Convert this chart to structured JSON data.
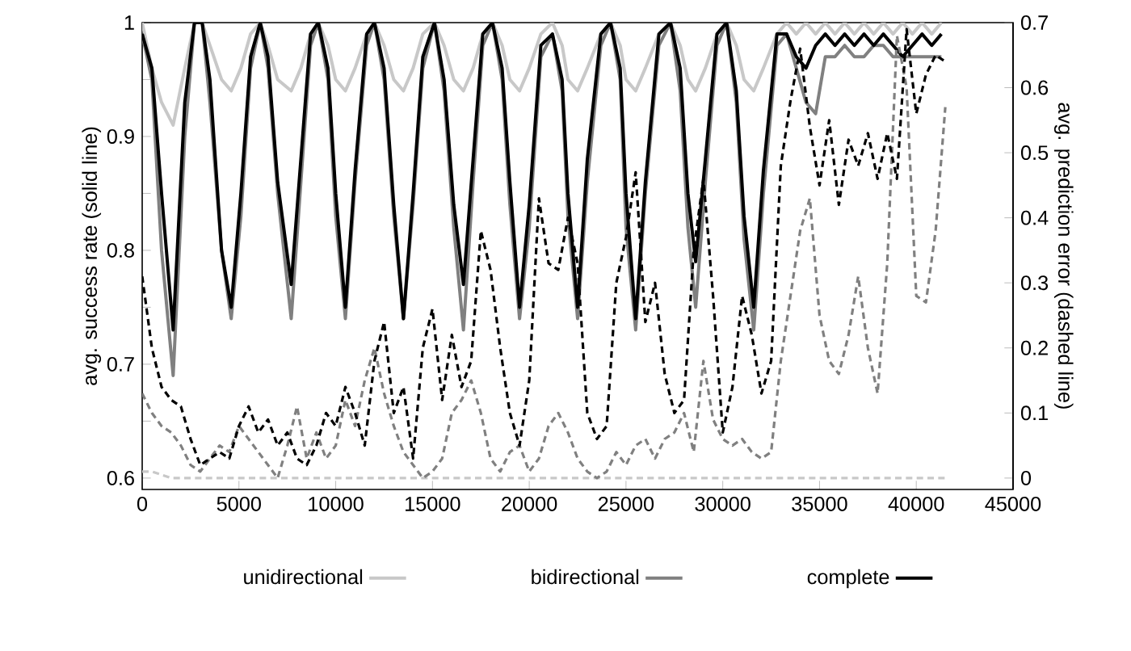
{
  "chart_data": {
    "type": "line",
    "ylabel": "avg. success rate (solid line)",
    "y2label": "avg. prediction error (dashed line)",
    "xlim": [
      0,
      45000
    ],
    "xticks": [
      0,
      5000,
      10000,
      15000,
      20000,
      25000,
      30000,
      35000,
      40000,
      45000
    ],
    "ylim": [
      0.59,
      1
    ],
    "yticks": [
      0.6,
      {
        "value": 0.65,
        "label": null
      },
      0.7,
      {
        "value": 0.75,
        "label": null
      },
      0.8,
      {
        "value": 0.85,
        "label": null
      },
      0.9,
      {
        "value": 0.95,
        "label": null
      },
      1
    ],
    "y2lim": [
      -0.0175,
      0.7
    ],
    "y2ticks": [
      0,
      0.1,
      0.2,
      0.3,
      0.4,
      0.5,
      0.6,
      0.7
    ],
    "legend": "bottom",
    "marker": "none",
    "series": [
      {
        "name": "unidirectional",
        "color": "#c8c8c8",
        "line_style": "solid",
        "x": [
          0,
          500,
          1000,
          1600,
          2200,
          2700,
          3100,
          3500,
          4100,
          4600,
          5100,
          5600,
          6100,
          6500,
          7000,
          7700,
          8200,
          8700,
          9100,
          9600,
          10000,
          10500,
          11000,
          11600,
          12000,
          12500,
          13000,
          13500,
          14000,
          14500,
          15100,
          15600,
          16100,
          16600,
          17100,
          17600,
          18100,
          18600,
          19000,
          19500,
          20000,
          20600,
          21200,
          21700,
          22000,
          22500,
          23000,
          23700,
          24200,
          24700,
          25000,
          25500,
          26000,
          26700,
          27300,
          27800,
          28200,
          28600,
          29100,
          29700,
          30200,
          30700,
          31100,
          31600,
          32100,
          32800,
          33300,
          33800,
          34300,
          34800,
          35300,
          35800,
          36300,
          36800,
          37300,
          37800,
          38300,
          38800,
          39300,
          39800,
          40300,
          40800,
          41300
        ],
        "values": [
          1.0,
          0.96,
          0.93,
          0.91,
          0.96,
          1.0,
          1.0,
          0.98,
          0.95,
          0.94,
          0.96,
          0.99,
          1.0,
          0.98,
          0.95,
          0.94,
          0.96,
          0.99,
          1.0,
          0.98,
          0.95,
          0.94,
          0.96,
          0.99,
          1.0,
          0.98,
          0.95,
          0.94,
          0.96,
          0.99,
          1.0,
          0.98,
          0.95,
          0.94,
          0.96,
          0.99,
          1.0,
          0.98,
          0.95,
          0.94,
          0.96,
          0.99,
          1.0,
          0.98,
          0.95,
          0.94,
          0.96,
          0.99,
          1.0,
          0.98,
          0.95,
          0.94,
          0.96,
          0.99,
          1.0,
          0.98,
          0.95,
          0.94,
          0.96,
          0.99,
          1.0,
          0.98,
          0.95,
          0.94,
          0.96,
          0.99,
          1.0,
          0.99,
          1.0,
          0.99,
          1.0,
          0.99,
          1.0,
          0.99,
          1.0,
          0.99,
          1.0,
          0.99,
          1.0,
          0.99,
          1.0,
          0.99,
          1.0
        ]
      },
      {
        "name": "bidirectional",
        "color": "#808080",
        "line_style": "solid",
        "x": [
          0,
          500,
          1000,
          1600,
          2200,
          2700,
          3100,
          3500,
          4100,
          4600,
          5100,
          5600,
          6100,
          6500,
          7000,
          7700,
          8200,
          8700,
          9100,
          9600,
          10000,
          10500,
          11000,
          11600,
          12000,
          12500,
          13000,
          13500,
          14000,
          14500,
          15100,
          15600,
          16100,
          16600,
          17100,
          17600,
          18100,
          18600,
          19000,
          19500,
          20000,
          20600,
          21200,
          21700,
          22000,
          22500,
          23000,
          23700,
          24200,
          24700,
          25000,
          25500,
          26000,
          26700,
          27300,
          27800,
          28200,
          28600,
          29100,
          29700,
          30200,
          30700,
          31100,
          31600,
          32100,
          32800,
          33300,
          33800,
          34300,
          34800,
          35300,
          35800,
          36300,
          36800,
          37300,
          37800,
          38300,
          38800,
          39300,
          39800,
          40300,
          40800,
          41300
        ],
        "values": [
          0.99,
          0.95,
          0.8,
          0.69,
          0.9,
          1.0,
          1.0,
          0.93,
          0.8,
          0.74,
          0.83,
          0.96,
          1.0,
          0.96,
          0.85,
          0.74,
          0.86,
          0.98,
          1.0,
          0.95,
          0.83,
          0.74,
          0.86,
          0.98,
          1.0,
          0.95,
          0.83,
          0.74,
          0.84,
          0.96,
          1.0,
          0.94,
          0.82,
          0.73,
          0.86,
          0.98,
          1.0,
          0.95,
          0.84,
          0.74,
          0.82,
          0.97,
          0.99,
          0.94,
          0.83,
          0.74,
          0.86,
          0.98,
          1.0,
          0.95,
          0.82,
          0.73,
          0.85,
          0.98,
          1.0,
          0.94,
          0.82,
          0.75,
          0.86,
          0.98,
          1.0,
          0.93,
          0.81,
          0.73,
          0.85,
          0.98,
          0.99,
          0.96,
          0.93,
          0.92,
          0.97,
          0.97,
          0.98,
          0.97,
          0.97,
          0.98,
          0.98,
          0.97,
          0.97,
          0.97,
          0.97,
          0.97,
          0.97
        ]
      },
      {
        "name": "complete",
        "color": "#000000",
        "line_style": "solid",
        "x": [
          0,
          500,
          1000,
          1600,
          2200,
          2700,
          3100,
          3500,
          4100,
          4600,
          5100,
          5600,
          6100,
          6500,
          7000,
          7700,
          8200,
          8700,
          9100,
          9600,
          10000,
          10500,
          11000,
          11600,
          12000,
          12500,
          13000,
          13500,
          14000,
          14500,
          15100,
          15600,
          16100,
          16600,
          17100,
          17600,
          18100,
          18600,
          19000,
          19500,
          20000,
          20600,
          21200,
          21700,
          22000,
          22500,
          23000,
          23700,
          24200,
          24700,
          25000,
          25500,
          26000,
          26700,
          27300,
          27800,
          28200,
          28600,
          29100,
          29700,
          30200,
          30700,
          31100,
          31600,
          32100,
          32800,
          33300,
          33800,
          34300,
          34800,
          35300,
          35800,
          36300,
          36800,
          37300,
          37800,
          38300,
          38800,
          39300,
          39800,
          40300,
          40800,
          41300
        ],
        "values": [
          0.99,
          0.96,
          0.85,
          0.73,
          0.93,
          1.0,
          1.0,
          0.95,
          0.8,
          0.75,
          0.85,
          0.97,
          1.0,
          0.97,
          0.86,
          0.77,
          0.88,
          0.99,
          1.0,
          0.96,
          0.85,
          0.75,
          0.87,
          0.99,
          1.0,
          0.96,
          0.84,
          0.74,
          0.85,
          0.97,
          1.0,
          0.95,
          0.84,
          0.77,
          0.88,
          0.99,
          1.0,
          0.96,
          0.86,
          0.75,
          0.84,
          0.98,
          0.99,
          0.95,
          0.85,
          0.75,
          0.88,
          0.99,
          1.0,
          0.96,
          0.85,
          0.74,
          0.86,
          0.99,
          1.0,
          0.96,
          0.85,
          0.79,
          0.88,
          0.99,
          1.0,
          0.94,
          0.83,
          0.75,
          0.87,
          0.99,
          0.99,
          0.97,
          0.96,
          0.98,
          0.99,
          0.98,
          0.99,
          0.98,
          0.99,
          0.98,
          0.99,
          0.98,
          0.97,
          0.98,
          0.99,
          0.98,
          0.99
        ]
      },
      {
        "axis": "y2",
        "color": "#c8c8c8",
        "line_style": "dashed",
        "x": [
          0,
          500,
          1500,
          41500
        ],
        "values": [
          0.01,
          0.01,
          0,
          0
        ]
      },
      {
        "axis": "y2",
        "color": "#808080",
        "line_style": "dashed",
        "x": [
          0,
          500,
          1000,
          1500,
          2000,
          2500,
          3000,
          3500,
          4000,
          4500,
          5000,
          5500,
          6000,
          6500,
          7000,
          7500,
          8000,
          8500,
          9000,
          9500,
          10000,
          10500,
          11000,
          11500,
          12000,
          12500,
          13000,
          13500,
          14000,
          14500,
          15000,
          15500,
          16000,
          16500,
          17000,
          17500,
          18000,
          18500,
          19000,
          19500,
          20000,
          20500,
          21000,
          21500,
          22000,
          22500,
          23000,
          23500,
          24000,
          24500,
          25000,
          25500,
          26000,
          26500,
          27000,
          27500,
          28000,
          28500,
          29000,
          29500,
          30000,
          30500,
          31000,
          31500,
          32000,
          32500,
          33000,
          33500,
          34000,
          34500,
          35000,
          35500,
          36000,
          36500,
          37000,
          37500,
          38000,
          38500,
          39000,
          39500,
          40000,
          40500,
          41000,
          41500
        ],
        "values": [
          0.13,
          0.1,
          0.08,
          0.07,
          0.05,
          0.02,
          0.01,
          0.03,
          0.05,
          0.04,
          0.08,
          0.06,
          0.04,
          0.02,
          0.0,
          0.05,
          0.11,
          0.03,
          0.07,
          0.03,
          0.05,
          0.12,
          0.08,
          0.15,
          0.2,
          0.13,
          0.08,
          0.04,
          0.02,
          0.0,
          0.01,
          0.03,
          0.1,
          0.12,
          0.15,
          0.1,
          0.03,
          0.01,
          0.04,
          0.05,
          0.01,
          0.03,
          0.08,
          0.1,
          0.07,
          0.03,
          0.01,
          0.0,
          0.01,
          0.04,
          0.02,
          0.05,
          0.06,
          0.03,
          0.06,
          0.07,
          0.1,
          0.04,
          0.18,
          0.09,
          0.06,
          0.05,
          0.06,
          0.04,
          0.03,
          0.04,
          0.18,
          0.28,
          0.38,
          0.43,
          0.25,
          0.18,
          0.16,
          0.22,
          0.31,
          0.2,
          0.13,
          0.33,
          0.68,
          0.6,
          0.28,
          0.27,
          0.38,
          0.57
        ]
      },
      {
        "axis": "y2",
        "color": "#000000",
        "line_style": "dashed",
        "x": [
          0,
          500,
          1000,
          1500,
          2000,
          2500,
          3000,
          3500,
          4000,
          4500,
          5000,
          5500,
          6000,
          6500,
          7000,
          7500,
          8000,
          8500,
          9000,
          9500,
          10000,
          10500,
          11000,
          11500,
          12000,
          12500,
          13000,
          13500,
          14000,
          14500,
          15000,
          15500,
          16000,
          16500,
          17000,
          17500,
          18000,
          18500,
          19000,
          19500,
          20000,
          20500,
          21000,
          21500,
          22000,
          22500,
          23000,
          23500,
          24000,
          24500,
          25000,
          25500,
          26000,
          26500,
          27000,
          27500,
          28000,
          28500,
          29000,
          29500,
          30000,
          30500,
          31000,
          31500,
          32000,
          32500,
          33000,
          33500,
          34000,
          34500,
          35000,
          35500,
          36000,
          36500,
          37000,
          37500,
          38000,
          38500,
          39000,
          39500,
          40000,
          40500,
          41000,
          41500
        ],
        "values": [
          0.31,
          0.2,
          0.14,
          0.12,
          0.11,
          0.06,
          0.02,
          0.03,
          0.04,
          0.03,
          0.08,
          0.11,
          0.07,
          0.09,
          0.05,
          0.07,
          0.03,
          0.02,
          0.05,
          0.1,
          0.08,
          0.14,
          0.1,
          0.05,
          0.18,
          0.24,
          0.1,
          0.14,
          0.03,
          0.2,
          0.26,
          0.12,
          0.22,
          0.14,
          0.18,
          0.38,
          0.32,
          0.2,
          0.1,
          0.05,
          0.15,
          0.43,
          0.33,
          0.32,
          0.4,
          0.33,
          0.1,
          0.06,
          0.08,
          0.3,
          0.37,
          0.47,
          0.24,
          0.3,
          0.16,
          0.1,
          0.12,
          0.35,
          0.46,
          0.28,
          0.07,
          0.14,
          0.28,
          0.22,
          0.13,
          0.18,
          0.48,
          0.58,
          0.66,
          0.54,
          0.45,
          0.55,
          0.42,
          0.52,
          0.48,
          0.53,
          0.46,
          0.53,
          0.46,
          0.69,
          0.56,
          0.62,
          0.65,
          0.64
        ]
      }
    ]
  }
}
